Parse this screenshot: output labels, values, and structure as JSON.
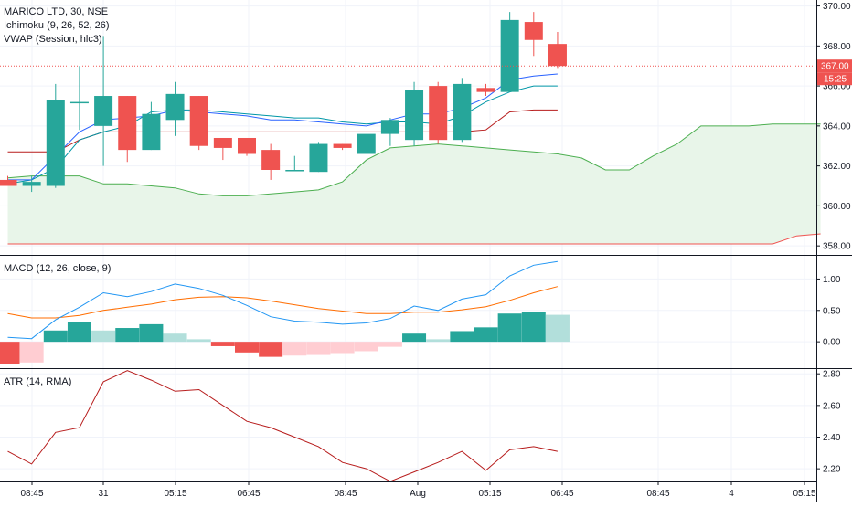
{
  "title": "MARICO LTD, 30, NSE",
  "legends": {
    "ichimoku": "Ichimoku (9, 26, 52, 26)",
    "vwap": "VWAP (Session, hlc3)",
    "macd": "MACD (12, 26, close, 9)",
    "atr": "ATR (14, RMA)"
  },
  "price_label": "367.00",
  "countdown_label": "15:25",
  "colors": {
    "up": "#26a69a",
    "down": "#ef5350",
    "macd_line": "#2196f3",
    "signal_line": "#ff6d00",
    "hist_up_strong": "#26a69a",
    "hist_up_weak": "#b2dfdb",
    "hist_down_strong": "#ef5350",
    "hist_down_weak": "#ffcdd2",
    "atr_line": "#b71c1c",
    "cloud_fill": "#e8f5e9",
    "cloud_edge": "#4caf50",
    "vwap": "#2962ff",
    "kijun": "#b71c1c",
    "tenkan": "#0097a7",
    "senkou_b": "#ef5350"
  },
  "chart_data": [
    {
      "type": "candlestick",
      "title": "MARICO LTD, 30, NSE",
      "y_ticks": [
        358,
        360,
        362,
        364,
        366,
        368,
        370
      ],
      "y_tick_labels": [
        "358.00",
        "360.00",
        "362.00",
        "364.00",
        "366.00",
        "368.00",
        "370.00"
      ],
      "ylim": [
        357.55,
        370.3
      ],
      "x_ticks": [
        "08:45",
        "31",
        "05:15",
        "06:45",
        "08:45",
        "Aug",
        "05:15",
        "06:45",
        "08:45",
        "4",
        "05:15"
      ],
      "current_price": 367.0,
      "candles": [
        {
          "o": 361.3,
          "h": 361.5,
          "l": 361.0,
          "c": 361.0
        },
        {
          "o": 361.0,
          "h": 361.5,
          "l": 360.7,
          "c": 361.2
        },
        {
          "o": 361.0,
          "h": 366.1,
          "l": 360.9,
          "c": 365.3
        },
        {
          "o": 365.2,
          "h": 367.0,
          "l": 363.8,
          "c": 365.2
        },
        {
          "o": 364.0,
          "h": 368.5,
          "l": 362.0,
          "c": 365.5
        },
        {
          "o": 365.5,
          "h": 365.5,
          "l": 362.2,
          "c": 362.8
        },
        {
          "o": 362.8,
          "h": 365.2,
          "l": 362.8,
          "c": 364.6
        },
        {
          "o": 364.3,
          "h": 366.2,
          "l": 363.5,
          "c": 365.6
        },
        {
          "o": 365.5,
          "h": 365.5,
          "l": 362.8,
          "c": 363.0
        },
        {
          "o": 363.4,
          "h": 363.4,
          "l": 362.3,
          "c": 362.9
        },
        {
          "o": 363.4,
          "h": 363.4,
          "l": 362.5,
          "c": 362.6
        },
        {
          "o": 362.8,
          "h": 363.1,
          "l": 361.3,
          "c": 361.8
        },
        {
          "o": 361.8,
          "h": 362.5,
          "l": 361.8,
          "c": 361.8
        },
        {
          "o": 361.7,
          "h": 363.2,
          "l": 361.7,
          "c": 363.1
        },
        {
          "o": 363.1,
          "h": 363.1,
          "l": 362.8,
          "c": 362.9
        },
        {
          "o": 362.6,
          "h": 363.5,
          "l": 362.6,
          "c": 363.6
        },
        {
          "o": 363.6,
          "h": 364.4,
          "l": 363.0,
          "c": 364.3
        },
        {
          "o": 363.3,
          "h": 366.2,
          "l": 363.0,
          "c": 365.8
        },
        {
          "o": 366.0,
          "h": 366.2,
          "l": 363.1,
          "c": 363.3
        },
        {
          "o": 363.3,
          "h": 366.4,
          "l": 363.2,
          "c": 366.1
        },
        {
          "o": 365.9,
          "h": 366.1,
          "l": 365.5,
          "c": 365.7
        },
        {
          "o": 365.7,
          "h": 369.7,
          "l": 365.7,
          "c": 369.3
        },
        {
          "o": 369.2,
          "h": 369.7,
          "l": 367.5,
          "c": 368.3
        },
        {
          "o": 368.1,
          "h": 368.7,
          "l": 366.9,
          "c": 367.0
        }
      ],
      "ichimoku": {
        "senkou_a": [
          361.4,
          361.5,
          361.5,
          361.5,
          361.1,
          361.1,
          361.0,
          360.9,
          360.6,
          360.5,
          360.5,
          360.6,
          360.7,
          360.8,
          361.2,
          362.3,
          362.9,
          363.0,
          363.1,
          363.0,
          362.9,
          362.8,
          362.7,
          362.6,
          362.4,
          361.8,
          361.8,
          362.5,
          363.1,
          364.0,
          364.0,
          364.0,
          364.1,
          364.1,
          364.1
        ],
        "senkou_b": [
          358.1,
          358.1,
          358.1,
          358.1,
          358.1,
          358.1,
          358.1,
          358.1,
          358.1,
          358.1,
          358.1,
          358.1,
          358.1,
          358.1,
          358.1,
          358.1,
          358.1,
          358.1,
          358.1,
          358.1,
          358.1,
          358.1,
          358.1,
          358.1,
          358.1,
          358.1,
          358.1,
          358.1,
          358.1,
          358.1,
          358.1,
          358.1,
          358.1,
          358.5,
          358.6
        ],
        "kijun": [
          362.7,
          362.7,
          362.7,
          363.3,
          363.7,
          363.7,
          363.7,
          363.7,
          363.7,
          363.7,
          363.7,
          363.7,
          363.7,
          363.7,
          363.7,
          363.7,
          363.7,
          363.7,
          363.7,
          363.7,
          363.8,
          364.7,
          364.8,
          364.8
        ],
        "tenkan": [
          361.1,
          361.3,
          361.9,
          363.3,
          363.7,
          364.0,
          364.7,
          364.8,
          364.8,
          364.7,
          364.6,
          364.5,
          364.4,
          364.4,
          364.2,
          364.1,
          364.2,
          364.2,
          364.1,
          364.5,
          365.2,
          365.7,
          366.0,
          366.0
        ]
      },
      "vwap": [
        361.3,
        361.3,
        362.5,
        363.7,
        364.3,
        364.4,
        364.5,
        364.8,
        364.7,
        364.6,
        364.5,
        364.3,
        364.3,
        364.2,
        364.1,
        364.0,
        364.3,
        364.6,
        364.6,
        364.9,
        365.4,
        366.3,
        366.5,
        366.6
      ]
    },
    {
      "type": "macd",
      "title": "MACD (12, 26, close, 9)",
      "y_ticks": [
        0.0,
        0.5,
        1.0
      ],
      "y_tick_labels": [
        "0.00",
        "0.50",
        "1.00"
      ],
      "ylim": [
        -0.42,
        1.37
      ],
      "macd": [
        0.07,
        0.05,
        0.35,
        0.55,
        0.78,
        0.72,
        0.8,
        0.92,
        0.85,
        0.74,
        0.58,
        0.4,
        0.33,
        0.31,
        0.28,
        0.3,
        0.37,
        0.57,
        0.5,
        0.68,
        0.75,
        1.05,
        1.22,
        1.28
      ],
      "signal": [
        0.45,
        0.38,
        0.38,
        0.42,
        0.5,
        0.55,
        0.6,
        0.67,
        0.71,
        0.72,
        0.7,
        0.65,
        0.59,
        0.53,
        0.49,
        0.45,
        0.45,
        0.47,
        0.47,
        0.51,
        0.56,
        0.66,
        0.78,
        0.88
      ],
      "histogram": [
        -0.35,
        -0.33,
        0.18,
        0.31,
        0.18,
        0.22,
        0.28,
        0.13,
        0.04,
        -0.07,
        -0.17,
        -0.24,
        -0.22,
        -0.21,
        -0.18,
        -0.15,
        -0.08,
        0.13,
        0.04,
        0.17,
        0.23,
        0.45,
        0.47,
        0.43
      ]
    },
    {
      "type": "line",
      "title": "ATR (14, RMA)",
      "y_ticks": [
        2.2,
        2.4,
        2.6,
        2.8
      ],
      "y_tick_labels": [
        "2.20",
        "2.40",
        "2.60",
        "2.80"
      ],
      "ylim": [
        2.12,
        2.83
      ],
      "series": [
        {
          "values": [
            2.31,
            2.23,
            2.43,
            2.46,
            2.75,
            2.82,
            2.76,
            2.69,
            2.7,
            2.6,
            2.5,
            2.46,
            2.4,
            2.34,
            2.24,
            2.2,
            2.12,
            2.18,
            2.24,
            2.31,
            2.19,
            2.32,
            2.34,
            2.31
          ]
        }
      ]
    }
  ]
}
